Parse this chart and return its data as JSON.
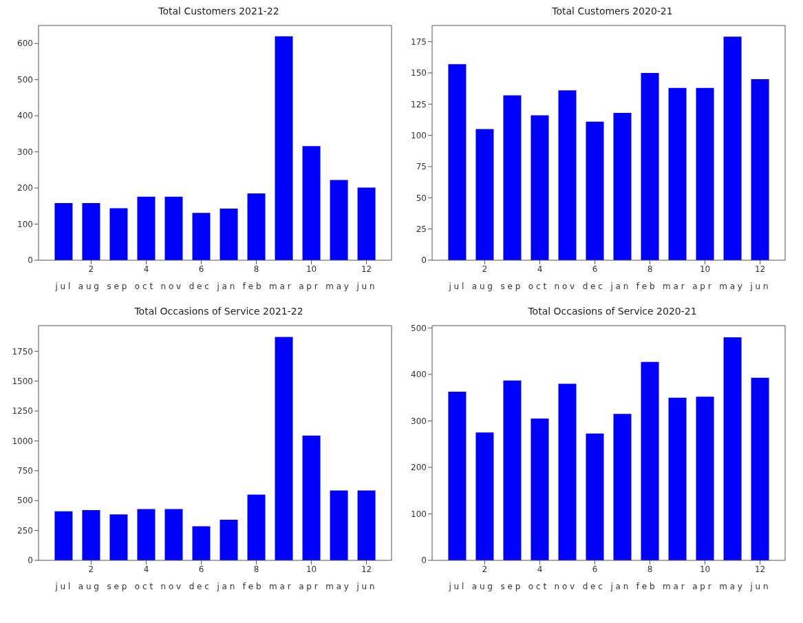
{
  "chart_data": [
    {
      "type": "bar",
      "title": "Total Customers 2021-22",
      "xlabel": "jul aug sep oct nov dec jan feb mar apr may jun",
      "x": [
        1,
        2,
        3,
        4,
        5,
        6,
        7,
        8,
        9,
        10,
        11,
        12
      ],
      "values": [
        158,
        158,
        144,
        176,
        176,
        131,
        143,
        185,
        620,
        316,
        222,
        201
      ],
      "color": "#0000ff",
      "xlim": [
        0.09,
        12.91
      ],
      "xticks": [
        2,
        4,
        6,
        8,
        10,
        12
      ],
      "ylim": [
        0,
        650
      ],
      "yticks": [
        0,
        100,
        200,
        300,
        400,
        500,
        600
      ],
      "grid": false
    },
    {
      "type": "bar",
      "title": "Total Customers 2020-21",
      "xlabel": "jul aug sep oct nov dec jan feb mar apr may jun",
      "x": [
        1,
        2,
        3,
        4,
        5,
        6,
        7,
        8,
        9,
        10,
        11,
        12
      ],
      "values": [
        157,
        105,
        132,
        116,
        136,
        111,
        118,
        150,
        138,
        138,
        179,
        145
      ],
      "color": "#0000ff",
      "xlim": [
        0.09,
        12.91
      ],
      "xticks": [
        2,
        4,
        6,
        8,
        10,
        12
      ],
      "ylim": [
        0,
        188
      ],
      "yticks": [
        0,
        25,
        50,
        75,
        100,
        125,
        150,
        175
      ],
      "grid": false
    },
    {
      "type": "bar",
      "title": "Total Occasions of Service 2021-22",
      "xlabel": "jul aug sep oct nov dec jan feb mar apr may jun",
      "x": [
        1,
        2,
        3,
        4,
        5,
        6,
        7,
        8,
        9,
        10,
        11,
        12
      ],
      "values": [
        410,
        420,
        385,
        430,
        430,
        285,
        340,
        550,
        1870,
        1045,
        585,
        585
      ],
      "color": "#0000ff",
      "xlim": [
        0.09,
        12.91
      ],
      "xticks": [
        2,
        4,
        6,
        8,
        10,
        12
      ],
      "ylim": [
        0,
        1965
      ],
      "yticks": [
        0,
        250,
        500,
        750,
        1000,
        1250,
        1500,
        1750
      ],
      "grid": false
    },
    {
      "type": "bar",
      "title": "Total Occasions of Service 2020-21",
      "xlabel": "jul aug sep oct nov dec jan feb mar apr may jun",
      "x": [
        1,
        2,
        3,
        4,
        5,
        6,
        7,
        8,
        9,
        10,
        11,
        12
      ],
      "values": [
        363,
        275,
        387,
        305,
        380,
        273,
        315,
        427,
        350,
        352,
        480,
        393
      ],
      "color": "#0000ff",
      "xlim": [
        0.09,
        12.91
      ],
      "xticks": [
        2,
        4,
        6,
        8,
        10,
        12
      ],
      "ylim": [
        0,
        505
      ],
      "yticks": [
        0,
        100,
        200,
        300,
        400,
        500
      ],
      "grid": false
    }
  ]
}
